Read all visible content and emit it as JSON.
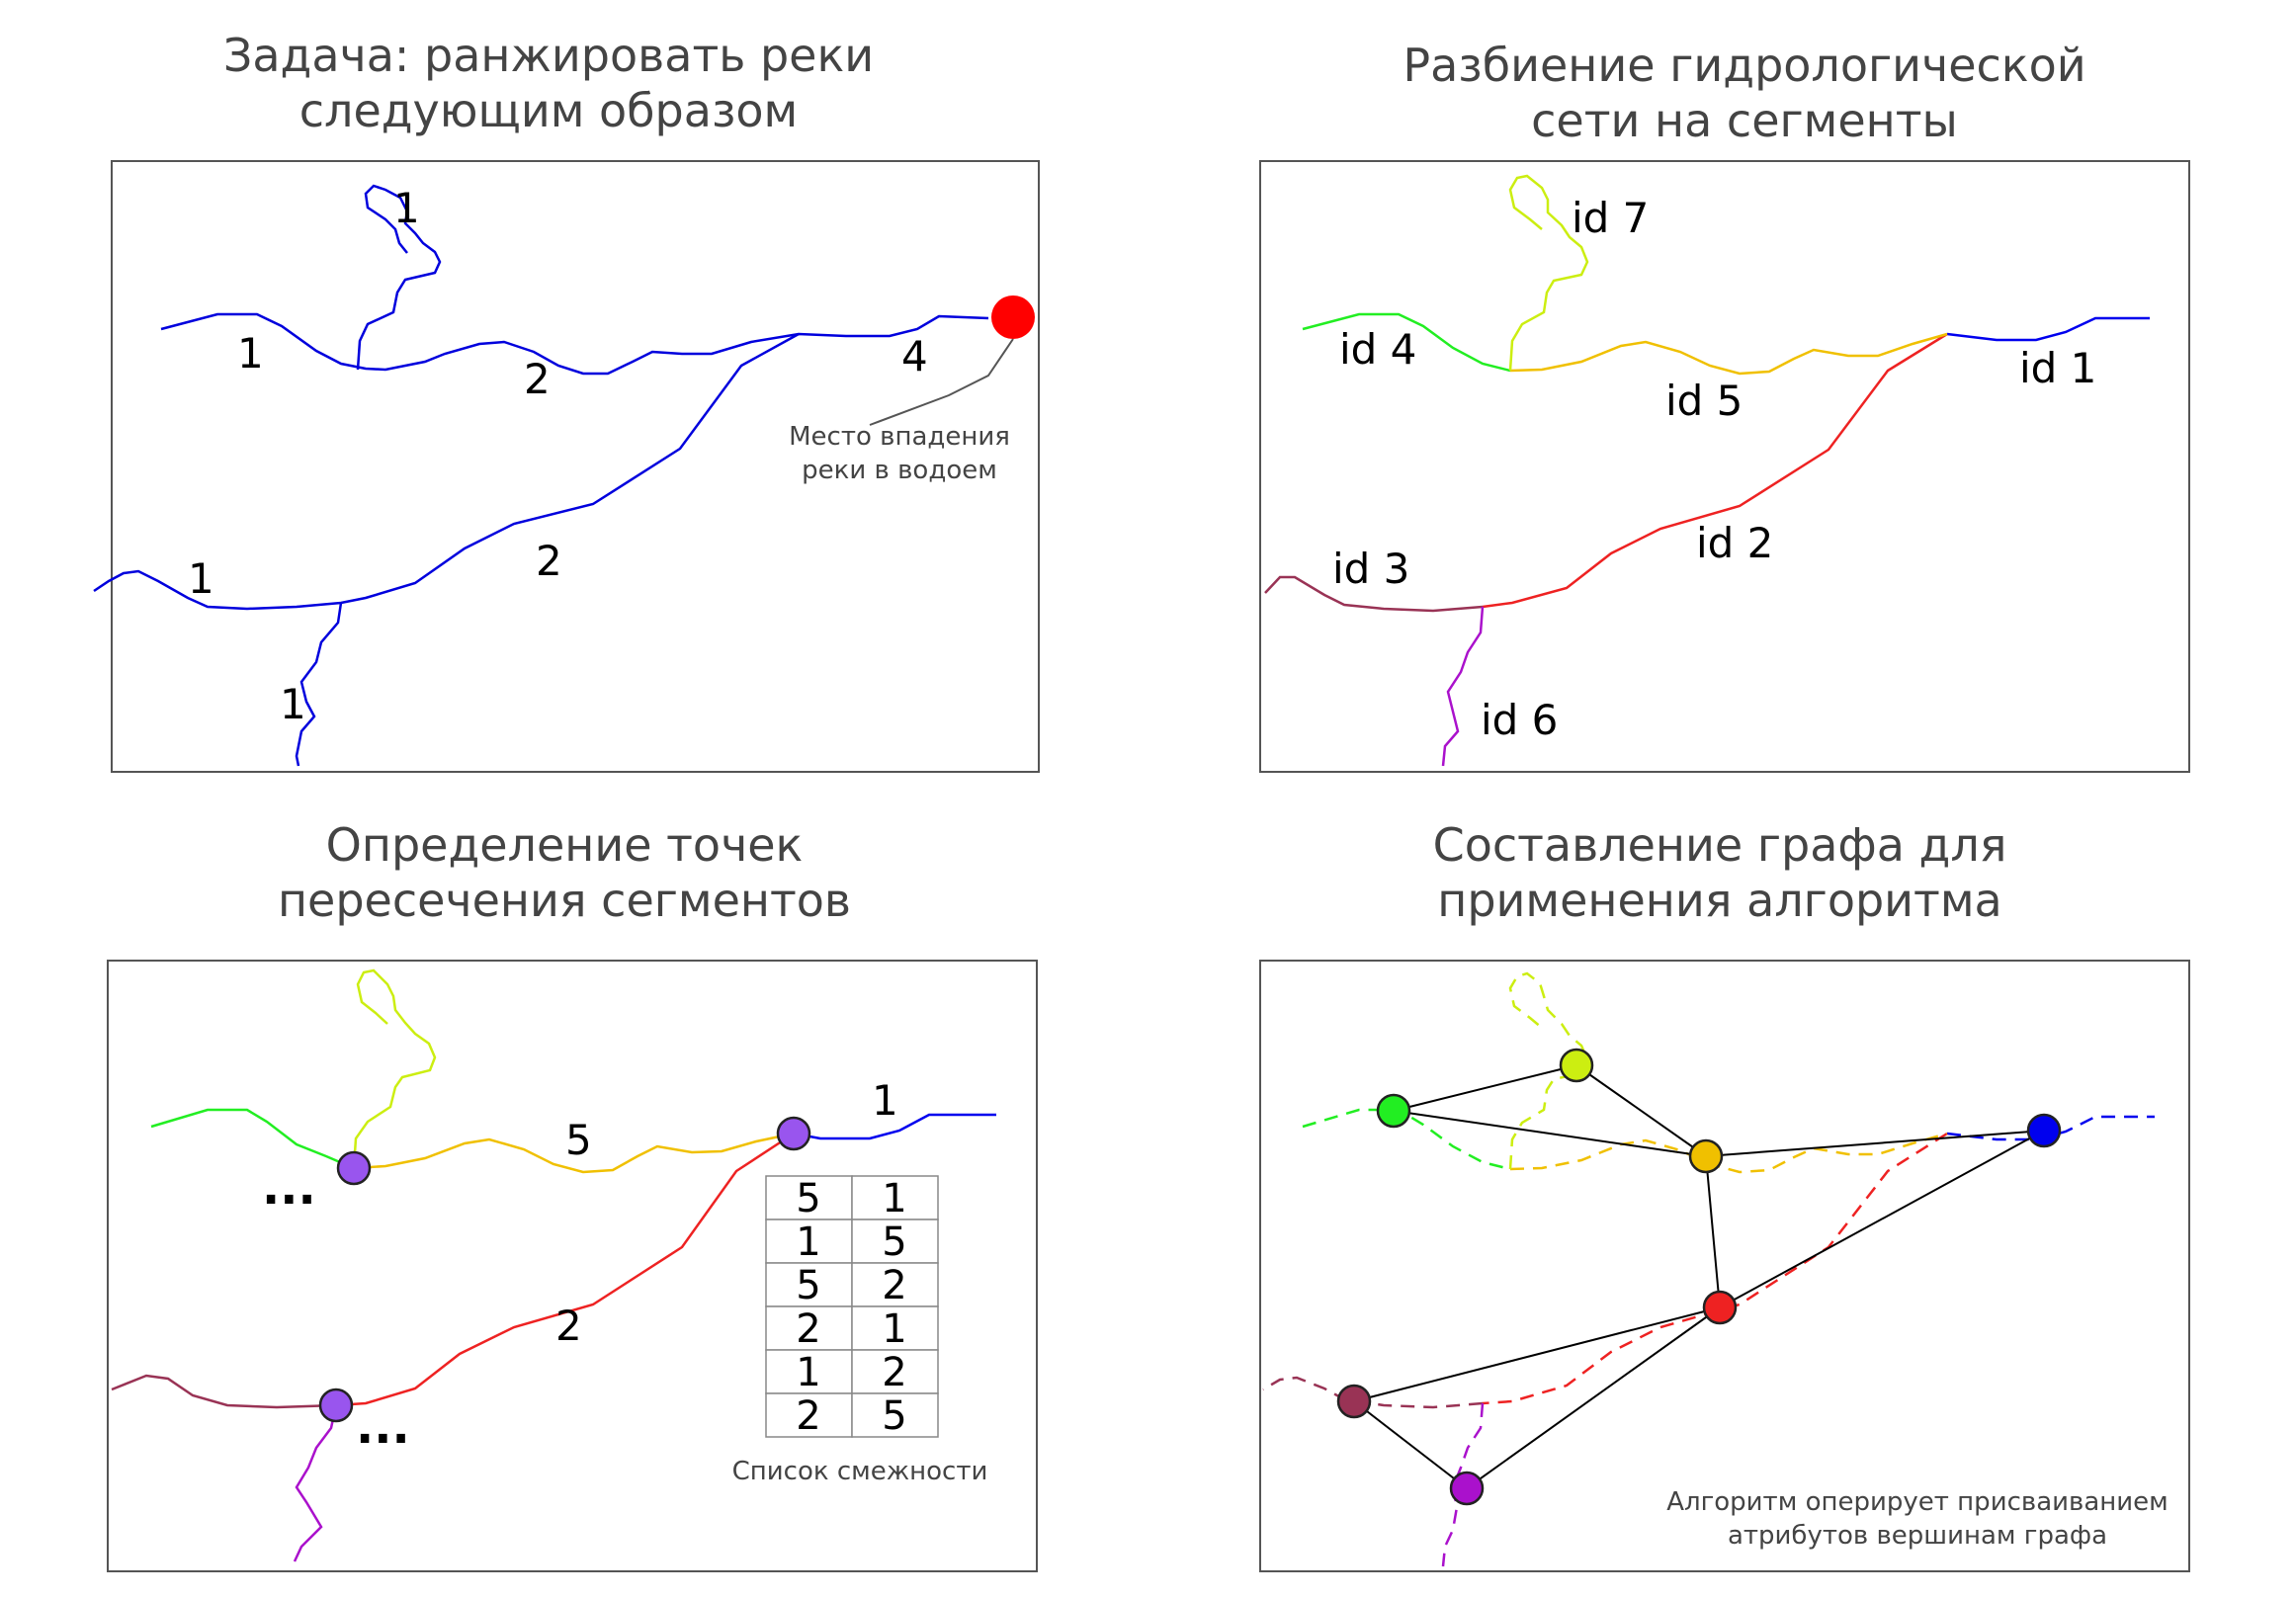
{
  "panels": {
    "p1": {
      "title_line1": "Задача: ранжировать реки",
      "title_line2": "следующим образом",
      "rank_labels": [
        "1",
        "1",
        "2",
        "4",
        "1",
        "2",
        "1"
      ],
      "mouth_note_line1": "Место впадения",
      "mouth_note_line2": "реки в водоем"
    },
    "p2": {
      "title_line1": "Разбиение гидрологической",
      "title_line2": "сети на сегменты",
      "segment_labels": [
        "id 7",
        "id 4",
        "id 5",
        "id 1",
        "id 2",
        "id 3",
        "id 6"
      ]
    },
    "p3": {
      "title_line1": "Определение точек",
      "title_line2": "пересечения сегментов",
      "segment_labels": [
        "5",
        "1",
        "2"
      ],
      "ellipsis": "...",
      "adjacency_table": [
        [
          "5",
          "1"
        ],
        [
          "1",
          "5"
        ],
        [
          "5",
          "2"
        ],
        [
          "2",
          "1"
        ],
        [
          "1",
          "2"
        ],
        [
          "2",
          "5"
        ]
      ],
      "table_caption": "Список смежности"
    },
    "p4": {
      "title_line1": "Составление графа для",
      "title_line2": "применения алгоритма",
      "note_line1": "Алгоритм оперирует присваиванием",
      "note_line2": "атрибутов вершинам графа"
    }
  },
  "colors": {
    "river": "#0000dd",
    "mouth": "#ff0000",
    "seg1": "#0000ee",
    "seg2": "#ee2222",
    "seg3": "#993355",
    "seg4": "#22ee22",
    "seg5": "#f0c000",
    "seg6": "#aa11cc",
    "seg7": "#ccee11",
    "junction": "#9955ee"
  },
  "icons": {
    "mouth": "red-filled-circle",
    "junction": "purple-filled-circle",
    "graph_vertex": "colored-circle"
  }
}
